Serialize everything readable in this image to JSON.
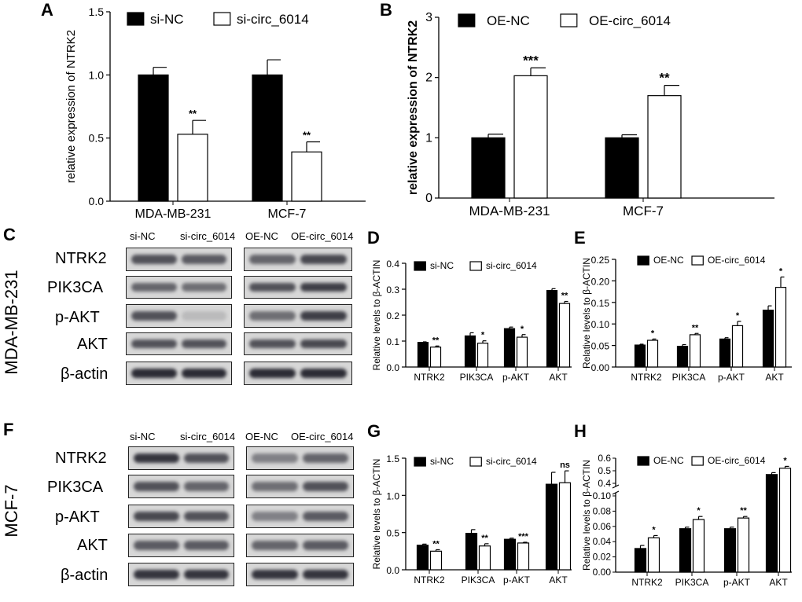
{
  "panel_letters": {
    "A": "A",
    "B": "B",
    "C": "C",
    "D": "D",
    "E": "E",
    "F": "F",
    "G": "G",
    "H": "H"
  },
  "blot_rows": [
    "NTRK2",
    "PIK3CA",
    "p-AKT",
    "AKT",
    "β-actin"
  ],
  "blot_columns": [
    "si-NC",
    "si-circ_6014",
    "OE-NC",
    "OE-circ_6014"
  ],
  "cell_lines": {
    "C": "MDA-MB-231",
    "F": "MCF-7"
  },
  "chart_data": [
    {
      "id": "A",
      "type": "bar",
      "xlabel": "",
      "ylabel": "relative expression of NTRK2",
      "categories": [
        "MDA-MB-231",
        "MCF-7"
      ],
      "series": [
        {
          "name": "si-NC",
          "values": [
            1.0,
            1.0
          ],
          "errors": [
            0.06,
            0.12
          ],
          "fill": "#000000"
        },
        {
          "name": "si-circ_6014",
          "values": [
            0.53,
            0.39
          ],
          "errors": [
            0.11,
            0.08
          ],
          "fill": "#ffffff"
        }
      ],
      "significance": [
        [
          "",
          ""
        ],
        [
          "**",
          "**"
        ]
      ],
      "ylim": [
        0,
        1.5
      ],
      "yticks": [
        "0.0",
        "0.5",
        "1.0",
        "1.5"
      ],
      "legend_position": "top"
    },
    {
      "id": "B",
      "type": "bar",
      "xlabel": "",
      "ylabel": "relative expression of NTRK2",
      "categories": [
        "MDA-MB-231",
        "MCF-7"
      ],
      "series": [
        {
          "name": "OE-NC",
          "values": [
            1.0,
            1.0
          ],
          "errors": [
            0.06,
            0.05
          ],
          "fill": "#000000"
        },
        {
          "name": "OE-circ_6014",
          "values": [
            2.03,
            1.7
          ],
          "errors": [
            0.13,
            0.17
          ],
          "fill": "#ffffff"
        }
      ],
      "significance": [
        [
          "",
          ""
        ],
        [
          "***",
          "**"
        ]
      ],
      "ylim": [
        0,
        3
      ],
      "yticks": [
        "0",
        "1",
        "2",
        "3"
      ],
      "legend_position": "top"
    },
    {
      "id": "D",
      "type": "bar",
      "xlabel": "",
      "ylabel": "Relative levels to β-ACTIN",
      "categories": [
        "NTRK2",
        "PIK3CA",
        "p-AKT",
        "AKT"
      ],
      "series": [
        {
          "name": "si-NC",
          "values": [
            0.095,
            0.12,
            0.148,
            0.295
          ],
          "errors": [
            0.002,
            0.012,
            0.006,
            0.007
          ],
          "fill": "#000000"
        },
        {
          "name": "si-circ_6014",
          "values": [
            0.077,
            0.092,
            0.115,
            0.245
          ],
          "errors": [
            0.004,
            0.009,
            0.01,
            0.008
          ],
          "fill": "#ffffff"
        }
      ],
      "significance": [
        [
          "",
          "",
          "",
          ""
        ],
        [
          "**",
          "*",
          "*",
          "**"
        ]
      ],
      "ylim": [
        0,
        0.4
      ],
      "yticks": [
        "0.0",
        "0.1",
        "0.2",
        "0.3",
        "0.4"
      ],
      "legend_position": "top"
    },
    {
      "id": "E",
      "type": "bar",
      "xlabel": "",
      "ylabel": "Relative levels to β-ACTIN",
      "categories": [
        "NTRK2",
        "PIK3CA",
        "p-AKT",
        "AKT"
      ],
      "series": [
        {
          "name": "OE-NC",
          "values": [
            0.051,
            0.048,
            0.065,
            0.132
          ],
          "errors": [
            0.002,
            0.004,
            0.003,
            0.01
          ],
          "fill": "#000000"
        },
        {
          "name": "OE-circ_6014",
          "values": [
            0.062,
            0.075,
            0.096,
            0.185
          ],
          "errors": [
            0.003,
            0.003,
            0.01,
            0.024
          ],
          "fill": "#ffffff"
        }
      ],
      "significance": [
        [
          "",
          "",
          "",
          ""
        ],
        [
          "*",
          "**",
          "*",
          "*"
        ]
      ],
      "ylim": [
        0,
        0.25
      ],
      "yticks": [
        "0.00",
        "0.05",
        "0.10",
        "0.15",
        "0.20",
        "0.25"
      ],
      "legend_position": "top"
    },
    {
      "id": "G",
      "type": "bar",
      "xlabel": "",
      "ylabel": "Relative levels to β-ACTIN",
      "categories": [
        "NTRK2",
        "PIK3CA",
        "p-AKT",
        "AKT"
      ],
      "series": [
        {
          "name": "si-NC",
          "values": [
            0.33,
            0.49,
            0.41,
            1.15
          ],
          "errors": [
            0.015,
            0.05,
            0.015,
            0.16
          ],
          "fill": "#000000"
        },
        {
          "name": "si-circ_6014",
          "values": [
            0.25,
            0.32,
            0.36,
            1.17
          ],
          "errors": [
            0.02,
            0.03,
            0.01,
            0.16
          ],
          "fill": "#ffffff"
        }
      ],
      "significance": [
        [
          "",
          "",
          "",
          ""
        ],
        [
          "**",
          "**",
          "***",
          "ns"
        ]
      ],
      "ylim": [
        0,
        1.5
      ],
      "yticks": [
        "0.0",
        "0.5",
        "1.0",
        "1.5"
      ],
      "legend_position": "top"
    },
    {
      "id": "H",
      "type": "bar",
      "xlabel": "",
      "ylabel": "Relative levels to β-ACTIN",
      "categories": [
        "NTRK2",
        "PIK3CA",
        "p-AKT",
        "AKT"
      ],
      "series": [
        {
          "name": "OE-NC",
          "values": [
            0.031,
            0.057,
            0.057,
            0.47
          ],
          "errors": [
            0.004,
            0.002,
            0.002,
            0.015
          ],
          "fill": "#000000"
        },
        {
          "name": "OE-circ_6014",
          "values": [
            0.045,
            0.069,
            0.071,
            0.52
          ],
          "errors": [
            0.003,
            0.004,
            0.002,
            0.015
          ],
          "fill": "#ffffff"
        }
      ],
      "significance": [
        [
          "",
          "",
          "",
          ""
        ],
        [
          "*",
          "*",
          "**",
          "*"
        ]
      ],
      "axis_break": {
        "lower": [
          0,
          0.1
        ],
        "upper": [
          0.4,
          0.6
        ]
      },
      "yticks_lower": [
        "0.00",
        "0.02",
        "0.04",
        "0.06",
        "0.08",
        "0.10"
      ],
      "yticks_upper": [
        "0.4",
        "0.5",
        "0.6"
      ],
      "legend_position": "top"
    }
  ]
}
